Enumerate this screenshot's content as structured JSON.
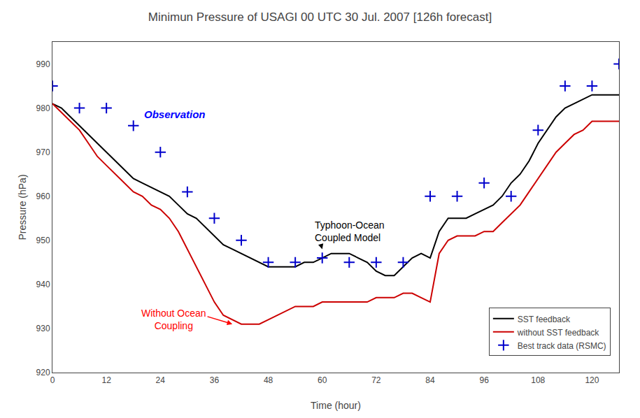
{
  "chart_data": {
    "type": "line",
    "title": "Minimun Pressure of USAGI 00 UTC 30 Jul. 2007 [126h forecast]",
    "xlabel": "Time (hour)",
    "ylabel": "Pressure (hPa)",
    "xlim": [
      0,
      126
    ],
    "ylim": [
      920,
      995
    ],
    "xticks": [
      0,
      12,
      24,
      36,
      48,
      60,
      72,
      84,
      96,
      108,
      120
    ],
    "yticks": [
      920,
      930,
      940,
      950,
      960,
      970,
      980,
      990
    ],
    "grid": false,
    "legend": "lower right",
    "series": [
      {
        "name": "SST feedback",
        "type": "line",
        "color": "#000000",
        "x": [
          0,
          2,
          4,
          6,
          8,
          10,
          12,
          14,
          16,
          18,
          20,
          22,
          24,
          26,
          28,
          30,
          32,
          34,
          36,
          38,
          40,
          42,
          44,
          46,
          48,
          50,
          52,
          54,
          56,
          58,
          60,
          62,
          64,
          66,
          68,
          70,
          72,
          74,
          76,
          78,
          80,
          82,
          84,
          86,
          88,
          90,
          92,
          94,
          96,
          98,
          100,
          102,
          104,
          106,
          108,
          110,
          112,
          114,
          116,
          118,
          120,
          122,
          124,
          126
        ],
        "values": [
          981,
          980,
          978,
          976,
          974,
          972,
          970,
          968,
          966,
          964,
          963,
          962,
          961,
          960,
          958,
          956,
          955,
          953,
          951,
          949,
          948,
          947,
          946,
          945,
          944,
          944,
          944,
          944,
          945,
          945,
          946,
          947,
          947,
          947,
          946,
          945,
          943,
          942,
          942,
          944,
          946,
          947,
          946,
          952,
          955,
          955,
          955,
          956,
          957,
          958,
          960,
          963,
          965,
          968,
          972,
          975,
          978,
          980,
          981,
          982,
          983,
          983,
          983,
          983
        ]
      },
      {
        "name": "without SST feedback",
        "type": "line",
        "color": "#cc0000",
        "x": [
          0,
          2,
          4,
          6,
          8,
          10,
          12,
          14,
          16,
          18,
          20,
          22,
          24,
          26,
          28,
          30,
          32,
          34,
          36,
          38,
          40,
          42,
          44,
          46,
          48,
          50,
          52,
          54,
          56,
          58,
          60,
          62,
          64,
          66,
          68,
          70,
          72,
          74,
          76,
          78,
          80,
          82,
          84,
          86,
          88,
          90,
          92,
          94,
          96,
          98,
          100,
          102,
          104,
          106,
          108,
          110,
          112,
          114,
          116,
          118,
          120,
          122,
          124,
          126
        ],
        "values": [
          981,
          979,
          977,
          975,
          972,
          969,
          967,
          965,
          963,
          961,
          960,
          958,
          957,
          955,
          952,
          948,
          944,
          940,
          936,
          933,
          932,
          931,
          931,
          931,
          932,
          933,
          934,
          935,
          935,
          935,
          936,
          936,
          936,
          936,
          936,
          936,
          937,
          937,
          937,
          938,
          938,
          937,
          936,
          947,
          950,
          951,
          951,
          951,
          952,
          952,
          954,
          956,
          958,
          961,
          964,
          967,
          970,
          972,
          974,
          975,
          977,
          977,
          977,
          977
        ]
      },
      {
        "name": "Best track data (RSMC)",
        "type": "scatter",
        "marker": "cross",
        "color": "#0000cc",
        "x": [
          0,
          6,
          12,
          18,
          24,
          30,
          36,
          42,
          48,
          54,
          60,
          66,
          72,
          78,
          84,
          90,
          96,
          102,
          108,
          114,
          120,
          126
        ],
        "values": [
          985,
          980,
          980,
          976,
          970,
          961,
          955,
          950,
          945,
          945,
          946,
          945,
          945,
          945,
          960,
          960,
          963,
          960,
          975,
          985,
          985,
          990
        ]
      }
    ],
    "annotations": [
      {
        "text": "Observation",
        "x": 20,
        "y": 977,
        "color": "blue"
      },
      {
        "text": "Typhoon-Ocean\nCoupled Model",
        "x": 58,
        "y": 955,
        "arrow_x": 60,
        "arrow_y": 948,
        "color": "black"
      },
      {
        "text": "Without Ocean\nCoupling",
        "x": 27,
        "y": 935,
        "arrow_x": 40,
        "arrow_y": 931,
        "color": "red"
      }
    ]
  }
}
